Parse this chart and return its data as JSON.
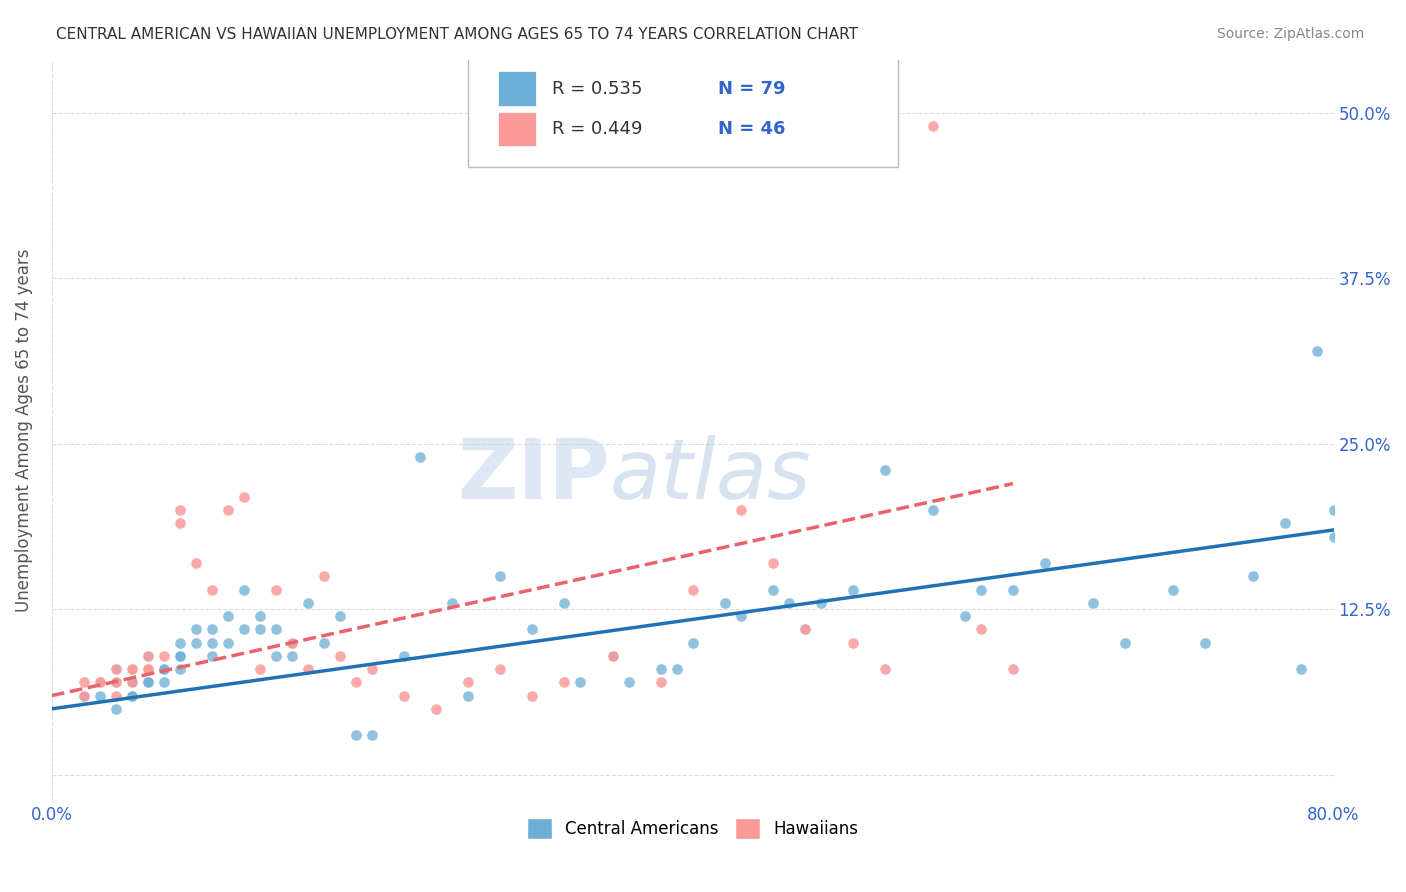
{
  "title": "CENTRAL AMERICAN VS HAWAIIAN UNEMPLOYMENT AMONG AGES 65 TO 74 YEARS CORRELATION CHART",
  "source": "Source: ZipAtlas.com",
  "ylabel": "Unemployment Among Ages 65 to 74 years",
  "xlim": [
    0.0,
    0.8
  ],
  "ylim": [
    -0.02,
    0.54
  ],
  "y_ticks_right": [
    0.0,
    0.125,
    0.25,
    0.375,
    0.5
  ],
  "y_tick_labels_right": [
    "",
    "12.5%",
    "25.0%",
    "37.5%",
    "50.0%"
  ],
  "legend_labels": [
    "Central Americans",
    "Hawaiians"
  ],
  "legend_R": [
    "R = 0.535",
    "R = 0.449"
  ],
  "legend_N": [
    "N = 79",
    "N = 46"
  ],
  "blue_color": "#6baed6",
  "pink_color": "#fb9a99",
  "blue_line_color": "#2171b5",
  "pink_line_color": "#e9636a",
  "background_color": "#ffffff",
  "blue_scatter_x": [
    0.02,
    0.03,
    0.03,
    0.04,
    0.04,
    0.04,
    0.05,
    0.05,
    0.05,
    0.05,
    0.05,
    0.06,
    0.06,
    0.06,
    0.06,
    0.06,
    0.07,
    0.07,
    0.07,
    0.08,
    0.08,
    0.08,
    0.08,
    0.09,
    0.09,
    0.1,
    0.1,
    0.1,
    0.11,
    0.11,
    0.12,
    0.12,
    0.13,
    0.13,
    0.14,
    0.14,
    0.15,
    0.15,
    0.16,
    0.17,
    0.18,
    0.19,
    0.2,
    0.22,
    0.23,
    0.25,
    0.26,
    0.28,
    0.3,
    0.32,
    0.33,
    0.35,
    0.36,
    0.38,
    0.39,
    0.4,
    0.42,
    0.43,
    0.45,
    0.46,
    0.47,
    0.48,
    0.5,
    0.52,
    0.55,
    0.57,
    0.58,
    0.6,
    0.62,
    0.65,
    0.67,
    0.7,
    0.72,
    0.75,
    0.77,
    0.78,
    0.79,
    0.8,
    0.8
  ],
  "blue_scatter_y": [
    0.06,
    0.06,
    0.07,
    0.07,
    0.05,
    0.08,
    0.06,
    0.07,
    0.07,
    0.08,
    0.06,
    0.07,
    0.07,
    0.08,
    0.08,
    0.09,
    0.07,
    0.08,
    0.08,
    0.09,
    0.09,
    0.1,
    0.08,
    0.1,
    0.11,
    0.1,
    0.09,
    0.11,
    0.1,
    0.12,
    0.14,
    0.11,
    0.11,
    0.12,
    0.11,
    0.09,
    0.1,
    0.09,
    0.13,
    0.1,
    0.12,
    0.03,
    0.03,
    0.09,
    0.24,
    0.13,
    0.06,
    0.15,
    0.11,
    0.13,
    0.07,
    0.09,
    0.07,
    0.08,
    0.08,
    0.1,
    0.13,
    0.12,
    0.14,
    0.13,
    0.11,
    0.13,
    0.14,
    0.23,
    0.2,
    0.12,
    0.14,
    0.14,
    0.16,
    0.13,
    0.1,
    0.14,
    0.1,
    0.15,
    0.19,
    0.08,
    0.32,
    0.2,
    0.18
  ],
  "pink_scatter_x": [
    0.02,
    0.02,
    0.03,
    0.03,
    0.04,
    0.04,
    0.04,
    0.05,
    0.05,
    0.05,
    0.05,
    0.06,
    0.06,
    0.06,
    0.07,
    0.08,
    0.08,
    0.09,
    0.1,
    0.11,
    0.12,
    0.13,
    0.14,
    0.15,
    0.16,
    0.17,
    0.18,
    0.19,
    0.2,
    0.22,
    0.24,
    0.26,
    0.28,
    0.3,
    0.32,
    0.35,
    0.38,
    0.4,
    0.43,
    0.45,
    0.47,
    0.5,
    0.52,
    0.55,
    0.58,
    0.6
  ],
  "pink_scatter_y": [
    0.06,
    0.07,
    0.07,
    0.07,
    0.07,
    0.08,
    0.06,
    0.08,
    0.07,
    0.08,
    0.08,
    0.08,
    0.08,
    0.09,
    0.09,
    0.19,
    0.2,
    0.16,
    0.14,
    0.2,
    0.21,
    0.08,
    0.14,
    0.1,
    0.08,
    0.15,
    0.09,
    0.07,
    0.08,
    0.06,
    0.05,
    0.07,
    0.08,
    0.06,
    0.07,
    0.09,
    0.07,
    0.14,
    0.2,
    0.16,
    0.11,
    0.1,
    0.08,
    0.49,
    0.11,
    0.08
  ],
  "blue_trend_x": [
    0.0,
    0.8
  ],
  "blue_trend_y": [
    0.05,
    0.185
  ],
  "pink_trend_x": [
    0.0,
    0.6
  ],
  "pink_trend_y": [
    0.06,
    0.22
  ]
}
